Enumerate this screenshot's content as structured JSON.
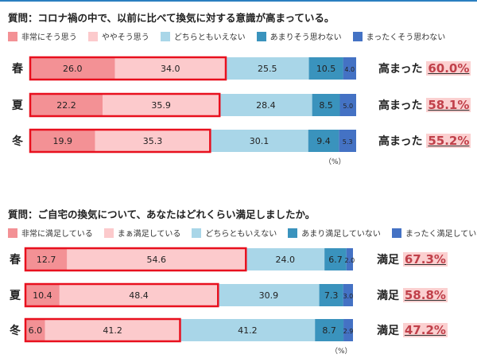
{
  "colors": [
    "#f39195",
    "#fccacc",
    "#a9d6e8",
    "#3a93bd",
    "#4472c4"
  ],
  "chart_data": [
    {
      "type": "bar",
      "orientation": "horizontal",
      "stacked": true,
      "title": "質問：コロナ禍の中で、以前に比べて換気に対する意識が高まっている。",
      "categories": [
        "春",
        "夏",
        "冬"
      ],
      "unit": "（%）",
      "series": [
        {
          "name": "非常にそう思う",
          "values": [
            26.0,
            22.2,
            19.9
          ]
        },
        {
          "name": "ややそう思う",
          "values": [
            34.0,
            35.9,
            35.3
          ]
        },
        {
          "name": "どちらともいえない",
          "values": [
            25.5,
            28.4,
            30.1
          ]
        },
        {
          "name": "あまりそう思わない",
          "values": [
            10.5,
            8.5,
            9.4
          ]
        },
        {
          "name": "まったくそう思わない",
          "values": [
            4.0,
            5.0,
            5.3
          ]
        }
      ],
      "summary_label": "高まった",
      "summary": [
        "60.0%",
        "58.1%",
        "55.2%"
      ]
    },
    {
      "type": "bar",
      "orientation": "horizontal",
      "stacked": true,
      "title": "質問：ご自宅の換気について、あなたはどれくらい満足しましたか。",
      "categories": [
        "春",
        "夏",
        "冬"
      ],
      "unit": "（%）",
      "series": [
        {
          "name": "非常に満足している",
          "values": [
            12.7,
            10.4,
            6.0
          ]
        },
        {
          "name": "まぁ満足している",
          "values": [
            54.6,
            48.4,
            41.2
          ]
        },
        {
          "name": "どちらともいえない",
          "values": [
            24.0,
            30.9,
            41.2
          ]
        },
        {
          "name": "あまり満足していない",
          "values": [
            6.7,
            7.3,
            8.7
          ]
        },
        {
          "name": "まったく満足していない",
          "values": [
            2.0,
            3.0,
            2.9
          ]
        }
      ],
      "summary_label": "満足",
      "summary": [
        "67.3%",
        "58.8%",
        "47.2%"
      ]
    }
  ]
}
